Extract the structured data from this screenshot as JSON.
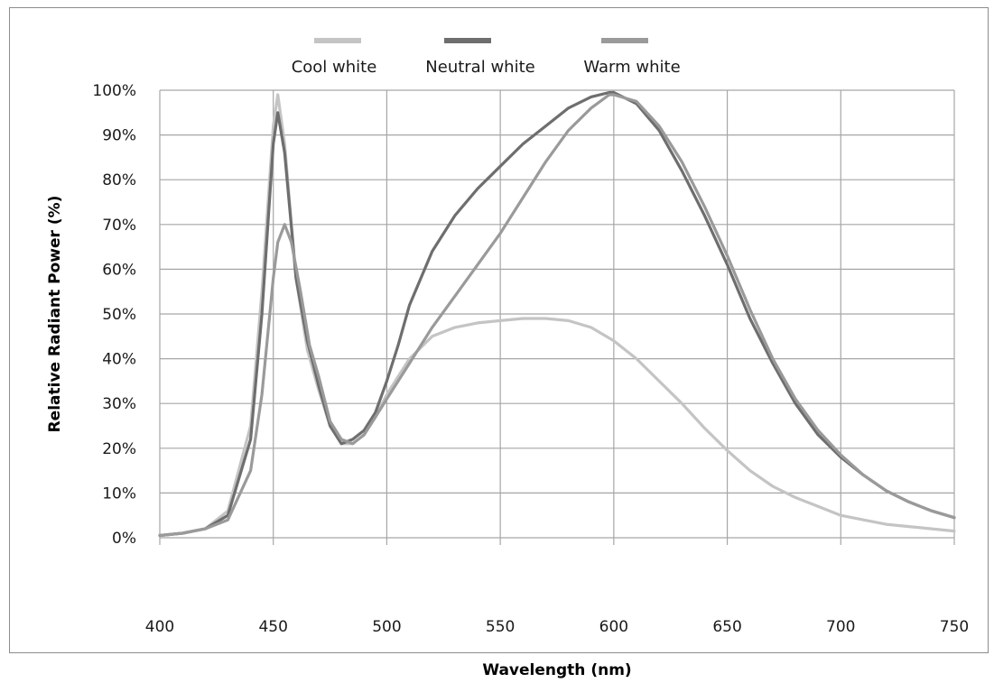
{
  "chart_data": {
    "type": "line",
    "title": "",
    "xlabel": "Wavelength (nm)",
    "ylabel": "Relative Radiant Power (%)",
    "xlim": [
      400,
      750
    ],
    "ylim": [
      0,
      100
    ],
    "x_ticks": [
      400,
      450,
      500,
      550,
      600,
      650,
      700,
      750
    ],
    "y_ticks": [
      0,
      10,
      20,
      30,
      40,
      50,
      60,
      70,
      80,
      90,
      100
    ],
    "x_tick_labels": [
      "400",
      "450",
      "500",
      "550",
      "600",
      "650",
      "700",
      "750"
    ],
    "y_tick_labels": [
      "0%",
      "10%",
      "20%",
      "30%",
      "40%",
      "50%",
      "60%",
      "70%",
      "80%",
      "90%",
      "100%"
    ],
    "grid": true,
    "legend": "top",
    "series": [
      {
        "name": "Cool white",
        "color": "#c4c4c4",
        "x": [
          400,
          410,
          420,
          430,
          440,
          445,
          450,
          452,
          455,
          460,
          465,
          470,
          475,
          480,
          485,
          490,
          495,
          500,
          505,
          510,
          520,
          530,
          540,
          550,
          560,
          570,
          580,
          590,
          600,
          610,
          620,
          630,
          640,
          650,
          660,
          670,
          680,
          690,
          700,
          710,
          720,
          730,
          740,
          750
        ],
        "values": [
          0.5,
          1,
          2,
          6,
          25,
          55,
          92,
          99,
          88,
          58,
          42,
          33,
          25,
          21,
          21,
          23,
          27,
          32,
          36,
          40,
          45,
          47,
          48,
          48.5,
          49,
          49,
          48.5,
          47,
          44,
          40,
          35,
          30,
          24.5,
          19.5,
          15,
          11.5,
          9,
          7,
          5,
          4,
          3,
          2.5,
          2,
          1.5
        ]
      },
      {
        "name": "Neutral white",
        "color": "#6e6e6e",
        "x": [
          400,
          410,
          420,
          430,
          440,
          445,
          450,
          452,
          455,
          460,
          465,
          470,
          475,
          480,
          485,
          490,
          495,
          500,
          505,
          510,
          520,
          530,
          540,
          550,
          560,
          570,
          580,
          590,
          598,
          600,
          610,
          620,
          630,
          640,
          650,
          660,
          670,
          680,
          690,
          700,
          710,
          720,
          730,
          740,
          750
        ],
        "values": [
          0.5,
          1,
          2,
          5,
          22,
          50,
          88,
          95,
          86,
          58,
          44,
          34,
          25,
          21,
          22,
          24,
          28,
          35,
          43,
          52,
          64,
          72,
          78,
          83,
          88,
          92,
          96,
          98.5,
          99.5,
          99.5,
          97,
          91,
          82,
          72,
          61,
          49,
          39,
          30,
          23,
          18,
          14,
          10.5,
          8,
          6,
          4.5
        ]
      },
      {
        "name": "Warm white",
        "color": "#9a9a9a",
        "x": [
          400,
          410,
          420,
          430,
          440,
          445,
          450,
          452,
          455,
          458,
          462,
          466,
          470,
          475,
          480,
          485,
          490,
          495,
          500,
          510,
          520,
          530,
          540,
          550,
          560,
          570,
          580,
          590,
          598,
          600,
          610,
          620,
          630,
          640,
          650,
          660,
          670,
          680,
          690,
          700,
          710,
          720,
          730,
          740,
          750
        ],
        "values": [
          0.5,
          1,
          2,
          4,
          15,
          32,
          58,
          66,
          70,
          66,
          55,
          43,
          36,
          26,
          22,
          21,
          23,
          27,
          31,
          39,
          47,
          54,
          61,
          68,
          76,
          84,
          91,
          96,
          99,
          99,
          97.5,
          92,
          84,
          74,
          63,
          51,
          40,
          31,
          24,
          18.5,
          14,
          10.5,
          8,
          6,
          4.5
        ]
      }
    ]
  }
}
